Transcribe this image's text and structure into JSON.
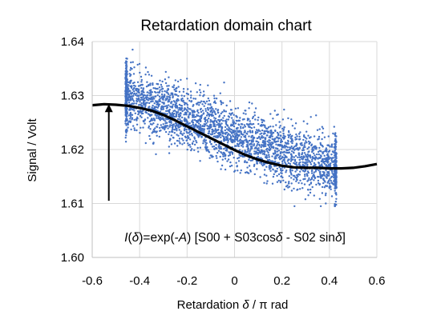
{
  "chart_data": {
    "type": "scatter",
    "title": "Retardation domain chart",
    "xlabel_prefix": "Retardation ",
    "xlabel_symbol": "δ",
    "xlabel_suffix": " / π rad",
    "ylabel": "Signal / Volt",
    "xlim": [
      -0.6,
      0.6
    ],
    "ylim": [
      1.6,
      1.64
    ],
    "xticks": [
      "-0.6",
      "-0.4",
      "-0.2",
      "0",
      "0.2",
      "0.4",
      "0.6"
    ],
    "yticks": [
      "1.60",
      "1.61",
      "1.62",
      "1.63",
      "1.64"
    ],
    "grid": true,
    "annotation": {
      "parts": [
        {
          "text": "I",
          "italic": true
        },
        {
          "text": "(",
          "italic": false
        },
        {
          "text": "δ",
          "italic": true
        },
        {
          "text": ")=exp(-",
          "italic": false
        },
        {
          "text": "A",
          "italic": true
        },
        {
          "text": ") [S00 + S03cos",
          "italic": false
        },
        {
          "text": "δ",
          "italic": true
        },
        {
          "text": " - S02 sin",
          "italic": false
        },
        {
          "text": "δ",
          "italic": true
        },
        {
          "text": "]",
          "italic": false
        }
      ],
      "arrow_x": -0.53,
      "arrow_from_y": 1.6105,
      "arrow_to_y": 1.6284
    },
    "scatter": {
      "x_range": [
        -0.46,
        0.43
      ],
      "color": "#4472C4",
      "trend": [
        [
          -0.46,
          1.63
        ],
        [
          -0.2,
          1.6255
        ],
        [
          0.0,
          1.6225
        ],
        [
          0.2,
          1.6195
        ],
        [
          0.43,
          1.616
        ]
      ],
      "noise_sd": 0.0028
    },
    "fit_curve": {
      "color": "#000000",
      "points": [
        [
          -0.6,
          1.6282
        ],
        [
          -0.55,
          1.6284
        ],
        [
          -0.5,
          1.6283
        ],
        [
          -0.45,
          1.6281
        ],
        [
          -0.4,
          1.6277
        ],
        [
          -0.35,
          1.6272
        ],
        [
          -0.3,
          1.6264
        ],
        [
          -0.25,
          1.6254
        ],
        [
          -0.2,
          1.6243
        ],
        [
          -0.15,
          1.6232
        ],
        [
          -0.1,
          1.6221
        ],
        [
          -0.05,
          1.621
        ],
        [
          0.0,
          1.6199
        ],
        [
          0.05,
          1.6189
        ],
        [
          0.1,
          1.6181
        ],
        [
          0.15,
          1.6175
        ],
        [
          0.2,
          1.617
        ],
        [
          0.25,
          1.6167
        ],
        [
          0.3,
          1.6166
        ],
        [
          0.35,
          1.6166
        ],
        [
          0.4,
          1.6165
        ],
        [
          0.45,
          1.6165
        ],
        [
          0.5,
          1.6166
        ],
        [
          0.55,
          1.6169
        ],
        [
          0.6,
          1.6173
        ]
      ]
    }
  }
}
